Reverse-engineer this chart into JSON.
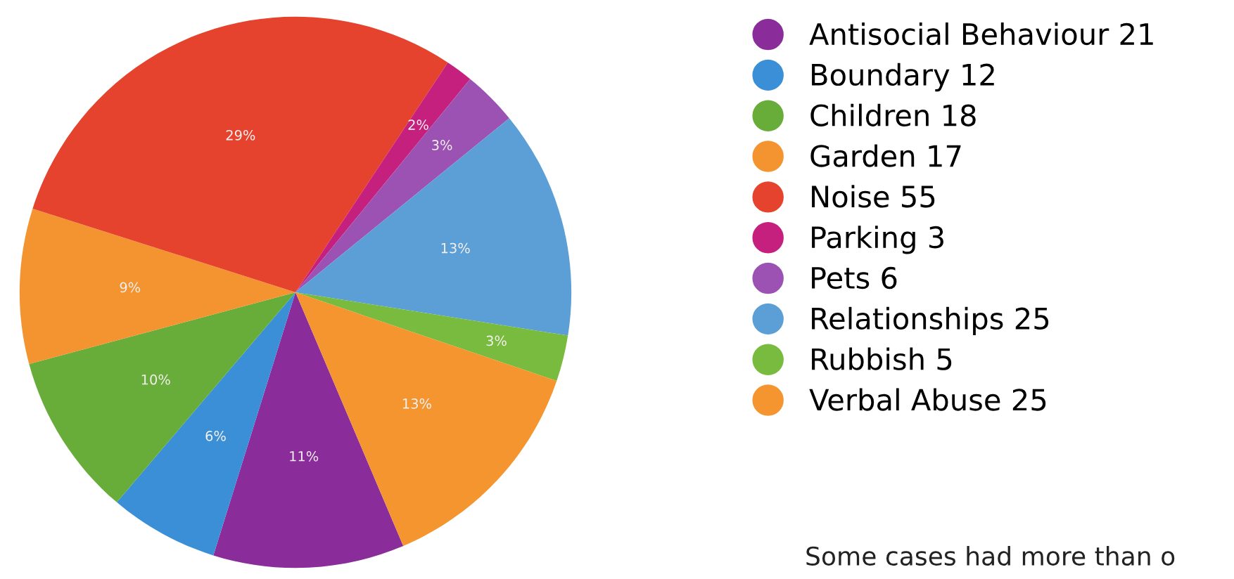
{
  "chart_data": {
    "type": "pie",
    "categories": [
      "Antisocial Behaviour 21",
      "Boundary 12",
      "Children 18",
      "Garden 17",
      "Noise 55",
      "Parking 3",
      "Pets 6",
      "Relationships 25",
      "Rubbish 5",
      "Verbal Abuse 25"
    ],
    "values": [
      11.2,
      6.4,
      9.6,
      9.1,
      29.4,
      1.6,
      3.2,
      13.4,
      2.7,
      13.4
    ],
    "value_labels": [
      "11%",
      "6%",
      "10%",
      "9%",
      "29%",
      "2%",
      "3%",
      "13%",
      "3%",
      "13%"
    ],
    "colors": [
      "#8a2d9b",
      "#3a8fd6",
      "#68ad3a",
      "#f39430",
      "#e6432e",
      "#c6207e",
      "#9b52b3",
      "#5b9fd6",
      "#79bb3f",
      "#f4952f"
    ],
    "legend": "right",
    "annotations": [
      "Some cases had more than o"
    ]
  }
}
